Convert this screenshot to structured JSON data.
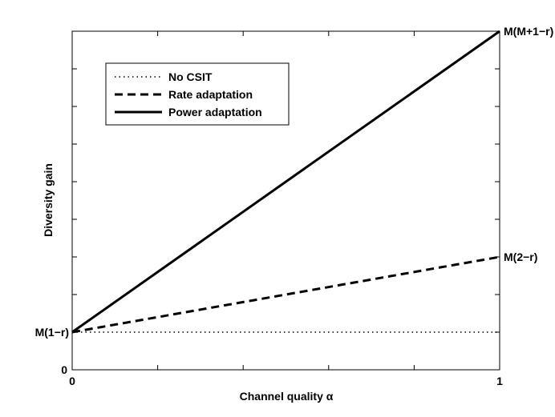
{
  "chart_data": {
    "type": "line",
    "title": "",
    "xlabel": "Channel quality α",
    "ylabel": "Diversity gain",
    "xlim": [
      0,
      1
    ],
    "ylim": [
      0,
      9
    ],
    "x_ticks": [
      0,
      0.2,
      0.4,
      0.6,
      0.8,
      1
    ],
    "x_tick_labels": [
      "0",
      "",
      "",
      "",
      "",
      "1"
    ],
    "y_ticks": [
      0,
      1,
      2,
      3,
      4,
      5,
      6,
      7,
      8,
      9
    ],
    "y_tick_labels": [
      "0",
      "",
      "",
      "",
      "",
      "",
      "",
      "",
      "",
      ""
    ],
    "grid": false,
    "legend_position": "top-left",
    "series": [
      {
        "name": "No CSIT",
        "style": "dotted",
        "color": "#000000",
        "x": [
          0,
          1
        ],
        "y": [
          1,
          1
        ]
      },
      {
        "name": "Rate adaptation",
        "style": "dashed",
        "color": "#000000",
        "x": [
          0,
          1
        ],
        "y": [
          1,
          3
        ]
      },
      {
        "name": "Power adaptation",
        "style": "solid",
        "color": "#000000",
        "x": [
          0,
          1
        ],
        "y": [
          1,
          9
        ]
      }
    ],
    "annotations": [
      {
        "text": "M(1−r)",
        "x": 0,
        "y": 1
      },
      {
        "text": "M(2−r)",
        "x": 1,
        "y": 3
      },
      {
        "text": "M(M+1−r)",
        "x": 1,
        "y": 9
      }
    ]
  }
}
